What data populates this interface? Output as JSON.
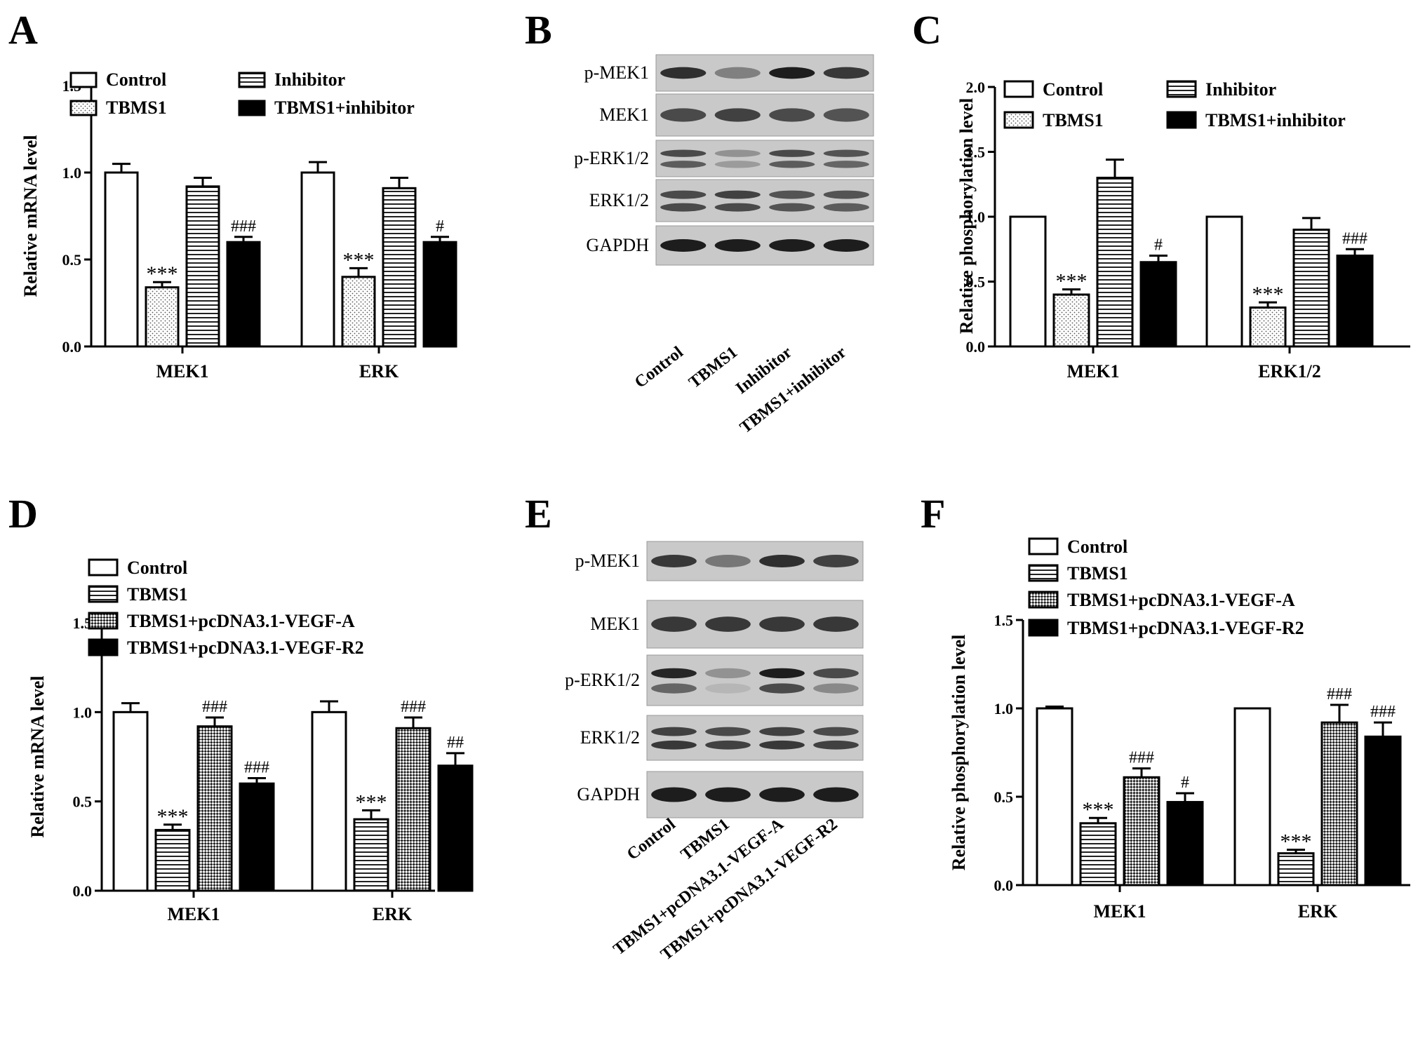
{
  "panels": [
    {
      "letter": "A"
    },
    {
      "letter": "B"
    },
    {
      "letter": "C"
    },
    {
      "letter": "D"
    },
    {
      "letter": "E"
    },
    {
      "letter": "F"
    }
  ],
  "chart_data": [
    {
      "panel": "A",
      "type": "bar",
      "ylabel": "Relative  mRNA level",
      "ylim": [
        0,
        1.5
      ],
      "yticks": [
        "0.0",
        "0.5",
        "1.0",
        "1.5"
      ],
      "categories": [
        "MEK1",
        "ERK"
      ],
      "legend": {
        "placement": "top",
        "columns": 2
      },
      "series": [
        {
          "name": "Control",
          "pattern": "white",
          "values": [
            1.0,
            1.0
          ],
          "errors": [
            0.05,
            0.06
          ],
          "annotations": [
            "",
            ""
          ]
        },
        {
          "name": "TBMS1",
          "pattern": "dots",
          "values": [
            0.34,
            0.4
          ],
          "errors": [
            0.03,
            0.05
          ],
          "annotations": [
            "***",
            "***"
          ]
        },
        {
          "name": "Inhibitor",
          "pattern": "hlines",
          "values": [
            0.92,
            0.91
          ],
          "errors": [
            0.05,
            0.06
          ],
          "annotations": [
            "",
            ""
          ]
        },
        {
          "name": "TBMS1+inhibitor",
          "pattern": "black",
          "values": [
            0.6,
            0.6
          ],
          "errors": [
            0.03,
            0.03
          ],
          "annotations": [
            "###",
            "#"
          ]
        }
      ]
    },
    {
      "panel": "C",
      "type": "bar",
      "ylabel": "Relative phosphorylation level",
      "ylim": [
        0,
        2.0
      ],
      "yticks": [
        "0.0",
        "0.5",
        "1.0",
        "1.5",
        "2.0"
      ],
      "categories": [
        "MEK1",
        "ERK1/2"
      ],
      "legend": {
        "placement": "top",
        "columns": 2
      },
      "series": [
        {
          "name": "Control",
          "pattern": "white",
          "values": [
            1.0,
            1.0
          ],
          "errors": [
            0,
            0
          ],
          "annotations": [
            "",
            ""
          ]
        },
        {
          "name": "TBMS1",
          "pattern": "dots",
          "values": [
            0.4,
            0.3
          ],
          "errors": [
            0.04,
            0.04
          ],
          "annotations": [
            "***",
            "***"
          ]
        },
        {
          "name": "Inhibitor",
          "pattern": "hlines",
          "values": [
            1.3,
            0.9
          ],
          "errors": [
            0.14,
            0.09
          ],
          "annotations": [
            "",
            ""
          ]
        },
        {
          "name": "TBMS1+inhibitor",
          "pattern": "black",
          "values": [
            0.65,
            0.7
          ],
          "errors": [
            0.05,
            0.05
          ],
          "annotations": [
            "#",
            "###"
          ]
        }
      ]
    },
    {
      "panel": "D",
      "type": "bar",
      "ylabel": "Relative  mRNA level",
      "ylim": [
        0,
        1.5
      ],
      "yticks": [
        "0.0",
        "0.5",
        "1.0",
        "1.5"
      ],
      "categories": [
        "MEK1",
        "ERK"
      ],
      "legend": {
        "placement": "top",
        "columns": 1
      },
      "series": [
        {
          "name": "Control",
          "pattern": "white",
          "values": [
            1.0,
            1.0
          ],
          "errors": [
            0.05,
            0.06
          ],
          "annotations": [
            "",
            ""
          ]
        },
        {
          "name": "TBMS1",
          "pattern": "hlines",
          "values": [
            0.34,
            0.4
          ],
          "errors": [
            0.03,
            0.05
          ],
          "annotations": [
            "***",
            "***"
          ]
        },
        {
          "name": "TBMS1+pcDNA3.1-VEGF-A",
          "pattern": "checker",
          "values": [
            0.92,
            0.91
          ],
          "errors": [
            0.05,
            0.06
          ],
          "annotations": [
            "###",
            "###"
          ]
        },
        {
          "name": "TBMS1+pcDNA3.1-VEGF-R2",
          "pattern": "black",
          "values": [
            0.6,
            0.7
          ],
          "errors": [
            0.03,
            0.07
          ],
          "annotations": [
            "###",
            "##"
          ]
        }
      ]
    },
    {
      "panel": "F",
      "type": "bar",
      "ylabel": "Relative phosphorylation level",
      "ylim": [
        0,
        1.5
      ],
      "yticks": [
        "0.0",
        "0.5",
        "1.0",
        "1.5"
      ],
      "categories": [
        "MEK1",
        "ERK"
      ],
      "legend": {
        "placement": "top",
        "columns": 1
      },
      "series": [
        {
          "name": "Control",
          "pattern": "white",
          "values": [
            1.0,
            1.0
          ],
          "errors": [
            0.01,
            0
          ],
          "annotations": [
            "",
            ""
          ]
        },
        {
          "name": "TBMS1",
          "pattern": "hlines",
          "values": [
            0.35,
            0.18
          ],
          "errors": [
            0.03,
            0.02
          ],
          "annotations": [
            "***",
            "***"
          ]
        },
        {
          "name": "TBMS1+pcDNA3.1-VEGF-A",
          "pattern": "checker",
          "values": [
            0.61,
            0.92
          ],
          "errors": [
            0.05,
            0.1
          ],
          "annotations": [
            "###",
            "###"
          ]
        },
        {
          "name": "TBMS1+pcDNA3.1-VEGF-R2",
          "pattern": "black",
          "values": [
            0.47,
            0.84
          ],
          "errors": [
            0.05,
            0.08
          ],
          "annotations": [
            "#",
            "###"
          ]
        }
      ]
    }
  ],
  "blots": [
    {
      "panel": "B",
      "rows": [
        {
          "label": "p-MEK1",
          "bands": [
            [
              0.85
            ],
            [
              0.4
            ],
            [
              0.95
            ],
            [
              0.8
            ]
          ]
        },
        {
          "label": "MEK1",
          "bands": [
            [
              0.7
            ],
            [
              0.75
            ],
            [
              0.7
            ],
            [
              0.65
            ]
          ]
        },
        {
          "label": "p-ERK1/2",
          "bands": [
            [
              0.7,
              0.6
            ],
            [
              0.3,
              0.25
            ],
            [
              0.7,
              0.6
            ],
            [
              0.65,
              0.55
            ]
          ]
        },
        {
          "label": "ERK1/2",
          "bands": [
            [
              0.7,
              0.7
            ],
            [
              0.75,
              0.7
            ],
            [
              0.65,
              0.65
            ],
            [
              0.65,
              0.6
            ]
          ]
        },
        {
          "label": "GAPDH",
          "bands": [
            [
              0.95
            ],
            [
              0.95
            ],
            [
              0.95
            ],
            [
              0.95
            ]
          ]
        }
      ],
      "lanes": [
        "Control",
        "TBMS1",
        "Inhibitor",
        "TBMS1+inhibitor"
      ]
    },
    {
      "panel": "E",
      "rows": [
        {
          "label": "p-MEK1",
          "bands": [
            [
              0.8
            ],
            [
              0.45
            ],
            [
              0.85
            ],
            [
              0.75
            ]
          ]
        },
        {
          "label": "MEK1",
          "bands": [
            [
              0.8
            ],
            [
              0.8
            ],
            [
              0.8
            ],
            [
              0.8
            ]
          ]
        },
        {
          "label": "p-ERK1/2",
          "bands": [
            [
              0.9,
              0.55
            ],
            [
              0.3,
              0.1
            ],
            [
              0.95,
              0.7
            ],
            [
              0.7,
              0.35
            ]
          ]
        },
        {
          "label": "ERK1/2",
          "bands": [
            [
              0.75,
              0.8
            ],
            [
              0.7,
              0.75
            ],
            [
              0.75,
              0.8
            ],
            [
              0.7,
              0.75
            ]
          ]
        },
        {
          "label": "GAPDH",
          "bands": [
            [
              0.95
            ],
            [
              0.95
            ],
            [
              0.95
            ],
            [
              0.95
            ]
          ]
        }
      ],
      "lanes": [
        "Control",
        "TBMS1",
        "TBMS1+pcDNA3.1-VEGF-A",
        "TBMS1+pcDNA3.1-VEGF-R2"
      ]
    }
  ]
}
